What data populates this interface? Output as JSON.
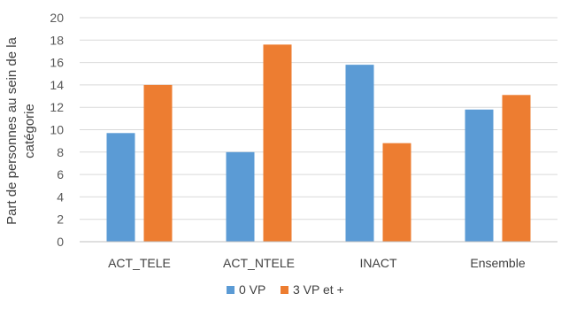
{
  "chart_data": {
    "type": "bar",
    "title": "",
    "xlabel": "",
    "ylabel_lines": [
      "Part de personnes au sein de la",
      "catégorie"
    ],
    "categories": [
      "ACT_TELE",
      "ACT_NTELE",
      "INACT",
      "Ensemble"
    ],
    "series": [
      {
        "name": "0 VP",
        "values": [
          9.7,
          8.0,
          15.8,
          11.8
        ],
        "color": "#5B9BD5"
      },
      {
        "name": "3 VP et +",
        "values": [
          14.0,
          17.6,
          8.8,
          13.1
        ],
        "color": "#ED7D31"
      }
    ],
    "ylim": [
      0,
      20
    ],
    "yticks": [
      "0",
      "2",
      "4",
      "6",
      "8",
      "10",
      "12",
      "14",
      "16",
      "18",
      "20"
    ],
    "grid": true,
    "grid_color": "#D9D9D9",
    "legend_position": "bottom"
  }
}
